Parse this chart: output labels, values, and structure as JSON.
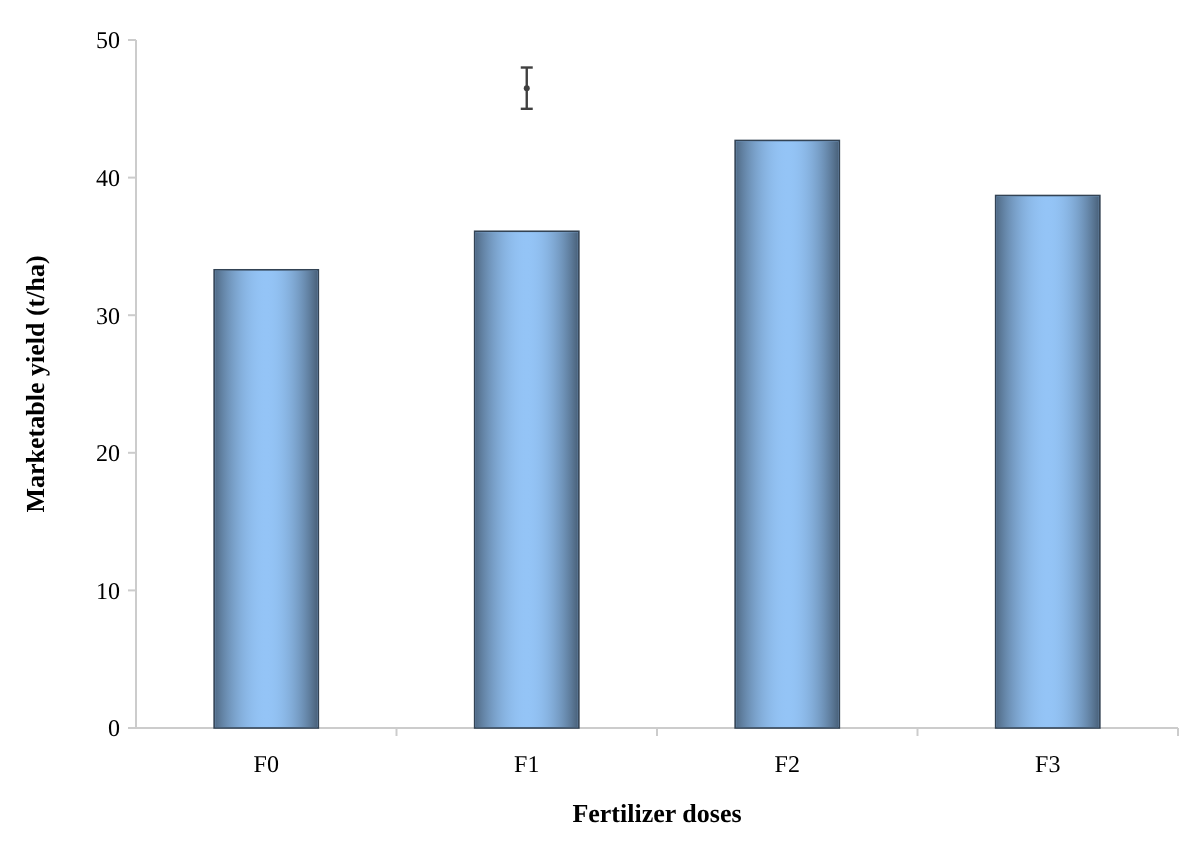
{
  "chart_data": {
    "type": "bar",
    "xlabel": "Fertilizer doses",
    "ylabel": "Marketable yield (t/ha)",
    "categories": [
      "F0",
      "F1",
      "F2",
      "F3"
    ],
    "series": [
      {
        "color": "#94c4f6",
        "values": [
          33.3,
          36.1,
          42.7,
          38.7
        ]
      },
      {
        "type": "scatter",
        "x": [
          "F1"
        ],
        "values": [
          46.5
        ],
        "errors": [
          1.5
        ],
        "color": "#404040"
      }
    ],
    "ylim": [
      0,
      50
    ],
    "yticks": [
      0,
      10,
      20,
      30,
      40,
      50
    ],
    "grid": false
  }
}
